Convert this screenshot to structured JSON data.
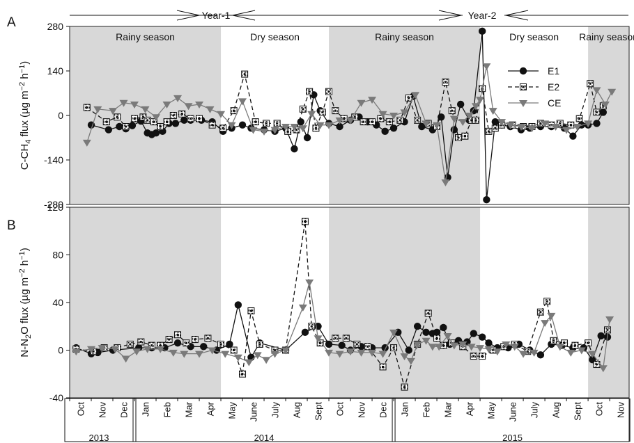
{
  "colors": {
    "rainy_bg": "#d8d8d8",
    "E1": "#111111",
    "E2": "#111111",
    "CE": "#7a7a7a",
    "frame": "#222222"
  },
  "header": {
    "year1": "Year-1",
    "year2": "Year-2"
  },
  "seasons": [
    {
      "label": "Rainy season",
      "kind": "rainy",
      "from": 0,
      "to": 7
    },
    {
      "label": "Dry season",
      "kind": "dry",
      "from": 7,
      "to": 12
    },
    {
      "label": "Rainy season",
      "kind": "rainy",
      "from": 12,
      "to": 19
    },
    {
      "label": "Dry season",
      "kind": "dry",
      "from": 19,
      "to": 24
    },
    {
      "label": "Rainy season",
      "kind": "rainy",
      "from": 24,
      "to": 25.9
    }
  ],
  "chart_data": [
    {
      "type": "line",
      "panel_letter": "A",
      "ylabel": "C-CH4 flux (µg m⁻² h⁻¹)",
      "ylabel_parts": {
        "pre": "C-CH",
        "sub": "4",
        "post": " flux (µg m",
        "sup1": "−2",
        "mid": " h",
        "sup2": "−1",
        "end": ")"
      },
      "ylim": [
        -280,
        280
      ],
      "yticks": [
        -280,
        -140,
        0,
        140,
        280
      ],
      "legend": {
        "placement": "top-right",
        "entries": [
          "E1",
          "E2",
          "CE"
        ]
      },
      "x_unit": "month index (0 = 1 Oct 2013)",
      "series": [
        {
          "name": "E1",
          "marker": "circle",
          "line": "solid",
          "x": [
            1.0,
            1.8,
            2.3,
            2.6,
            2.9,
            3.3,
            3.6,
            3.8,
            4.0,
            4.3,
            4.6,
            4.9,
            5.3,
            5.6,
            6.1,
            6.6,
            7.1,
            7.5,
            8.0,
            8.4,
            9.0,
            9.5,
            10.0,
            10.4,
            10.7,
            11.0,
            11.3,
            11.6,
            12.0,
            12.5,
            13.0,
            13.4,
            13.8,
            14.2,
            14.6,
            15.0,
            15.5,
            15.9,
            16.3,
            16.8,
            17.2,
            17.5,
            17.8,
            18.1,
            18.5,
            18.7,
            19.1,
            19.3,
            19.7,
            20.0,
            20.4,
            20.9,
            21.3,
            21.8,
            22.3,
            22.9,
            23.3,
            23.7,
            24.0,
            24.4,
            24.7
          ],
          "y": [
            -30,
            -45,
            -35,
            -42,
            -32,
            -18,
            -55,
            -60,
            -55,
            -50,
            -25,
            -25,
            -15,
            -15,
            -15,
            -20,
            -50,
            -40,
            -30,
            -40,
            -45,
            -50,
            -40,
            -105,
            -20,
            -70,
            65,
            15,
            -25,
            -35,
            -15,
            -5,
            -20,
            -30,
            -50,
            -40,
            -20,
            60,
            -35,
            -45,
            -5,
            -195,
            -45,
            35,
            -15,
            15,
            265,
            -265,
            -20,
            -30,
            -35,
            -45,
            -40,
            -35,
            -35,
            -40,
            -65,
            -30,
            -30,
            -25,
            10
          ]
        },
        {
          "name": "E2",
          "marker": "dotted-square",
          "line": "dashed",
          "x": [
            0.8,
            1.7,
            2.2,
            2.6,
            3.0,
            3.4,
            3.6,
            3.9,
            4.2,
            4.5,
            4.8,
            5.2,
            5.6,
            6.0,
            6.6,
            7.1,
            7.6,
            8.1,
            8.6,
            9.1,
            9.6,
            10.1,
            10.5,
            10.8,
            11.1,
            11.4,
            11.7,
            12.0,
            12.3,
            12.7,
            13.2,
            13.6,
            14.0,
            14.4,
            14.8,
            15.3,
            15.7,
            16.1,
            16.6,
            17.0,
            17.4,
            17.7,
            18.0,
            18.3,
            18.6,
            18.8,
            19.1,
            19.4,
            19.7,
            20.0,
            20.5,
            21.0,
            21.4,
            21.8,
            22.3,
            22.7,
            23.2,
            23.6,
            24.1,
            24.4,
            24.7
          ],
          "y": [
            25,
            -20,
            -5,
            -35,
            -10,
            -5,
            -15,
            -20,
            -35,
            -20,
            0,
            5,
            -10,
            -10,
            -30,
            -40,
            15,
            130,
            -20,
            -25,
            -25,
            -50,
            -45,
            20,
            75,
            -40,
            10,
            75,
            15,
            -10,
            -5,
            -20,
            -20,
            -10,
            -20,
            -15,
            55,
            -15,
            -25,
            -35,
            105,
            15,
            -70,
            -65,
            -15,
            -15,
            85,
            -50,
            -40,
            -30,
            -30,
            -35,
            -35,
            -25,
            -30,
            -25,
            -30,
            -10,
            100,
            10,
            30
          ]
        },
        {
          "name": "CE",
          "marker": "triangle-down",
          "line": "solid",
          "x": [
            0.8,
            1.3,
            2.0,
            2.5,
            3.0,
            3.5,
            4.0,
            4.5,
            5.0,
            5.5,
            6.0,
            6.5,
            7.0,
            7.5,
            8.0,
            8.5,
            9.0,
            9.5,
            10.0,
            10.4,
            10.8,
            11.2,
            11.6,
            12.0,
            12.5,
            13.0,
            13.5,
            14.0,
            14.5,
            15.0,
            15.5,
            16.0,
            16.5,
            17.0,
            17.4,
            17.8,
            18.2,
            18.5,
            18.8,
            19.0,
            19.3,
            19.6,
            20.0,
            20.4,
            20.9,
            21.4,
            22.0,
            22.5,
            23.0,
            23.5,
            24.0,
            24.4,
            24.8,
            25.1
          ],
          "y": [
            -85,
            20,
            15,
            40,
            35,
            20,
            -5,
            35,
            55,
            30,
            35,
            20,
            5,
            -30,
            45,
            -45,
            -50,
            -45,
            -35,
            -35,
            -40,
            5,
            -30,
            -30,
            -15,
            -15,
            40,
            50,
            5,
            0,
            10,
            65,
            -25,
            -30,
            -210,
            -10,
            -20,
            0,
            30,
            50,
            155,
            15,
            -20,
            -30,
            -35,
            -40,
            -25,
            -35,
            -45,
            -35,
            -25,
            80,
            35,
            75
          ]
        }
      ]
    },
    {
      "type": "line",
      "panel_letter": "B",
      "ylabel": "N-N2O flux (µg m⁻² h⁻¹)",
      "ylabel_parts": {
        "pre": "N-N",
        "sub": "2",
        "post": "O flux (µg m",
        "sup1": "−2",
        "mid": " h",
        "sup2": "−1",
        "end": ")"
      },
      "ylim": [
        -40,
        120
      ],
      "yticks": [
        -40,
        0,
        40,
        80,
        120
      ],
      "xlabel_months": [
        "Oct",
        "Nov",
        "Dec",
        "Jan",
        "Feb",
        "Mar",
        "Apr",
        "May",
        "June",
        "July",
        "Aug",
        "Sept",
        "Oct",
        "Nov",
        "Dec",
        "Jan",
        "Feb",
        "Mar",
        "Apr",
        "May",
        "June",
        "July",
        "Aug",
        "Sept",
        "Oct",
        "Nov"
      ],
      "xlabel_years": [
        {
          "label": "2013",
          "from": 0,
          "to": 3
        },
        {
          "label": "2014",
          "from": 3,
          "to": 15
        },
        {
          "label": "2015",
          "from": 15,
          "to": 26
        }
      ],
      "x_unit": "month index (0 = 1 Oct 2013)",
      "series": [
        {
          "name": "E1",
          "marker": "circle",
          "line": "solid",
          "x": [
            0.3,
            1.0,
            1.3,
            2.0,
            3.2,
            3.8,
            4.4,
            5.0,
            5.6,
            6.2,
            6.8,
            7.4,
            7.8,
            8.4,
            8.8,
            10.0,
            10.9,
            11.5,
            12.0,
            12.6,
            13.0,
            13.5,
            14.0,
            14.6,
            15.2,
            15.7,
            16.1,
            16.5,
            16.8,
            17.0,
            17.3,
            17.6,
            18.0,
            18.4,
            18.7,
            19.1,
            19.4,
            19.8,
            20.3,
            20.8,
            21.3,
            21.8,
            22.3,
            22.8,
            23.3,
            23.8,
            24.2,
            24.6,
            24.9
          ],
          "y": [
            2,
            -3,
            -2,
            0,
            2,
            2,
            2,
            6,
            3,
            3,
            0,
            5,
            38,
            -6,
            6,
            0,
            15,
            20,
            5,
            4,
            0,
            3,
            2,
            2,
            15,
            0,
            20,
            15,
            14,
            15,
            19,
            5,
            8,
            7,
            14,
            11,
            6,
            2,
            2,
            5,
            0,
            -4,
            5,
            4,
            2,
            2,
            -8,
            12,
            11
          ]
        },
        {
          "name": "E2",
          "marker": "dotted-square",
          "line": "dashed",
          "x": [
            0.3,
            1.1,
            1.6,
            2.2,
            2.8,
            3.3,
            3.8,
            4.2,
            4.6,
            5.0,
            5.4,
            5.8,
            6.4,
            7.0,
            7.6,
            8.0,
            8.4,
            8.8,
            9.5,
            10.0,
            10.9,
            11.2,
            11.6,
            12.3,
            12.8,
            13.3,
            13.8,
            14.5,
            15.0,
            15.5,
            16.1,
            16.6,
            17.0,
            17.3,
            17.7,
            18.2,
            18.7,
            19.1,
            19.6,
            20.1,
            20.6,
            21.2,
            21.8,
            22.1,
            22.4,
            22.9,
            23.4,
            24.0,
            24.4,
            24.9
          ],
          "y": [
            1,
            -1,
            2,
            2,
            5,
            7,
            4,
            4,
            9,
            13,
            6,
            9,
            10,
            5,
            0,
            -20,
            33,
            5,
            0,
            0,
            108,
            20,
            6,
            10,
            10,
            5,
            3,
            -14,
            2,
            -31,
            5,
            31,
            10,
            4,
            6,
            3,
            -5,
            -5,
            0,
            3,
            5,
            -1,
            32,
            41,
            8,
            6,
            4,
            6,
            -12,
            17
          ]
        },
        {
          "name": "CE",
          "marker": "triangle-down",
          "line": "solid",
          "x": [
            0.3,
            1.0,
            1.5,
            2.1,
            2.6,
            3.1,
            3.6,
            4.2,
            4.8,
            5.3,
            6.0,
            6.6,
            7.2,
            7.8,
            8.3,
            8.7,
            9.1,
            9.5,
            10.0,
            10.8,
            11.1,
            11.5,
            12.0,
            12.5,
            13.0,
            13.5,
            14.0,
            14.5,
            15.0,
            15.5,
            15.8,
            16.1,
            16.5,
            16.8,
            17.1,
            17.5,
            17.8,
            18.2,
            18.6,
            19.0,
            19.4,
            19.8,
            20.2,
            20.6,
            21.0,
            21.5,
            22.0,
            22.3,
            22.7,
            23.2,
            23.7,
            24.2,
            24.7,
            25.0
          ],
          "y": [
            -1,
            1,
            2,
            1,
            -7,
            -1,
            1,
            1,
            -2,
            -3,
            -3,
            0,
            -3,
            -6,
            -10,
            -4,
            -8,
            -3,
            0,
            36,
            57,
            10,
            -2,
            -3,
            -1,
            -2,
            -2,
            -3,
            15,
            -5,
            -9,
            5,
            8,
            3,
            3,
            12,
            4,
            5,
            3,
            2,
            1,
            -1,
            5,
            3,
            -3,
            -2,
            23,
            29,
            3,
            -2,
            0,
            -3,
            -15,
            26
          ]
        }
      ]
    }
  ]
}
